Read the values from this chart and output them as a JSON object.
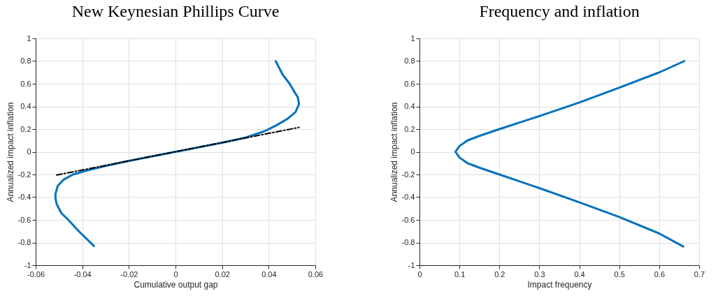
{
  "chart_data": [
    {
      "type": "line",
      "title": "New Keynesian Phillips Curve",
      "xlabel": "Cumulative output gap",
      "ylabel": "Annualized impact inflation",
      "xlim": [
        -0.06,
        0.06
      ],
      "xticks": [
        -0.06,
        -0.04,
        -0.02,
        0,
        0.02,
        0.04,
        0.06
      ],
      "ylim": [
        -1,
        1
      ],
      "yticks": [
        -1,
        -0.8,
        -0.6,
        -0.4,
        -0.2,
        0,
        0.2,
        0.4,
        0.6,
        0.8,
        1
      ],
      "grid": true,
      "series": [
        {
          "color": "#0072bd",
          "x": [
            -0.035,
            -0.0415,
            -0.046,
            -0.049,
            -0.051,
            -0.0515,
            -0.0515,
            -0.0505,
            -0.048,
            -0.044,
            -0.038,
            -0.03,
            -0.02,
            0,
            0.02,
            0.03,
            0.038,
            0.043,
            0.048,
            0.0515,
            0.053,
            0.0525,
            0.051,
            0.049,
            0.046,
            0.043
          ],
          "values": [
            -0.83,
            -0.7,
            -0.6,
            -0.54,
            -0.46,
            -0.41,
            -0.37,
            -0.3,
            -0.245,
            -0.2,
            -0.165,
            -0.125,
            -0.08,
            0,
            0.08,
            0.125,
            0.18,
            0.23,
            0.29,
            0.35,
            0.42,
            0.48,
            0.53,
            0.6,
            0.68,
            0.8
          ]
        },
        {
          "color": "#000000",
          "line_style": "dashed",
          "x": [
            -0.051,
            0.053
          ],
          "values": [
            -0.205,
            0.215
          ]
        }
      ]
    },
    {
      "type": "line",
      "title": "Frequency and inflation",
      "xlabel": "Impact frequency",
      "ylabel": "Annualized impact inflation",
      "xlim": [
        0,
        0.7
      ],
      "xticks": [
        0,
        0.1,
        0.2,
        0.3,
        0.4,
        0.5,
        0.6,
        0.7
      ],
      "ylim": [
        -1,
        1
      ],
      "yticks": [
        -1,
        -0.8,
        -0.6,
        -0.4,
        -0.2,
        0,
        0.2,
        0.4,
        0.6,
        0.8,
        1
      ],
      "grid": true,
      "series": [
        {
          "color": "#0072bd",
          "x": [
            0.663,
            0.6,
            0.5,
            0.4,
            0.3,
            0.2,
            0.15,
            0.12,
            0.1,
            0.09,
            0.1,
            0.12,
            0.15,
            0.2,
            0.3,
            0.4,
            0.5,
            0.6,
            0.66
          ],
          "values": [
            0.8,
            0.7,
            0.565,
            0.435,
            0.315,
            0.2,
            0.14,
            0.1,
            0.05,
            0,
            -0.05,
            -0.1,
            -0.14,
            -0.2,
            -0.32,
            -0.445,
            -0.575,
            -0.72,
            -0.835
          ]
        }
      ]
    }
  ]
}
